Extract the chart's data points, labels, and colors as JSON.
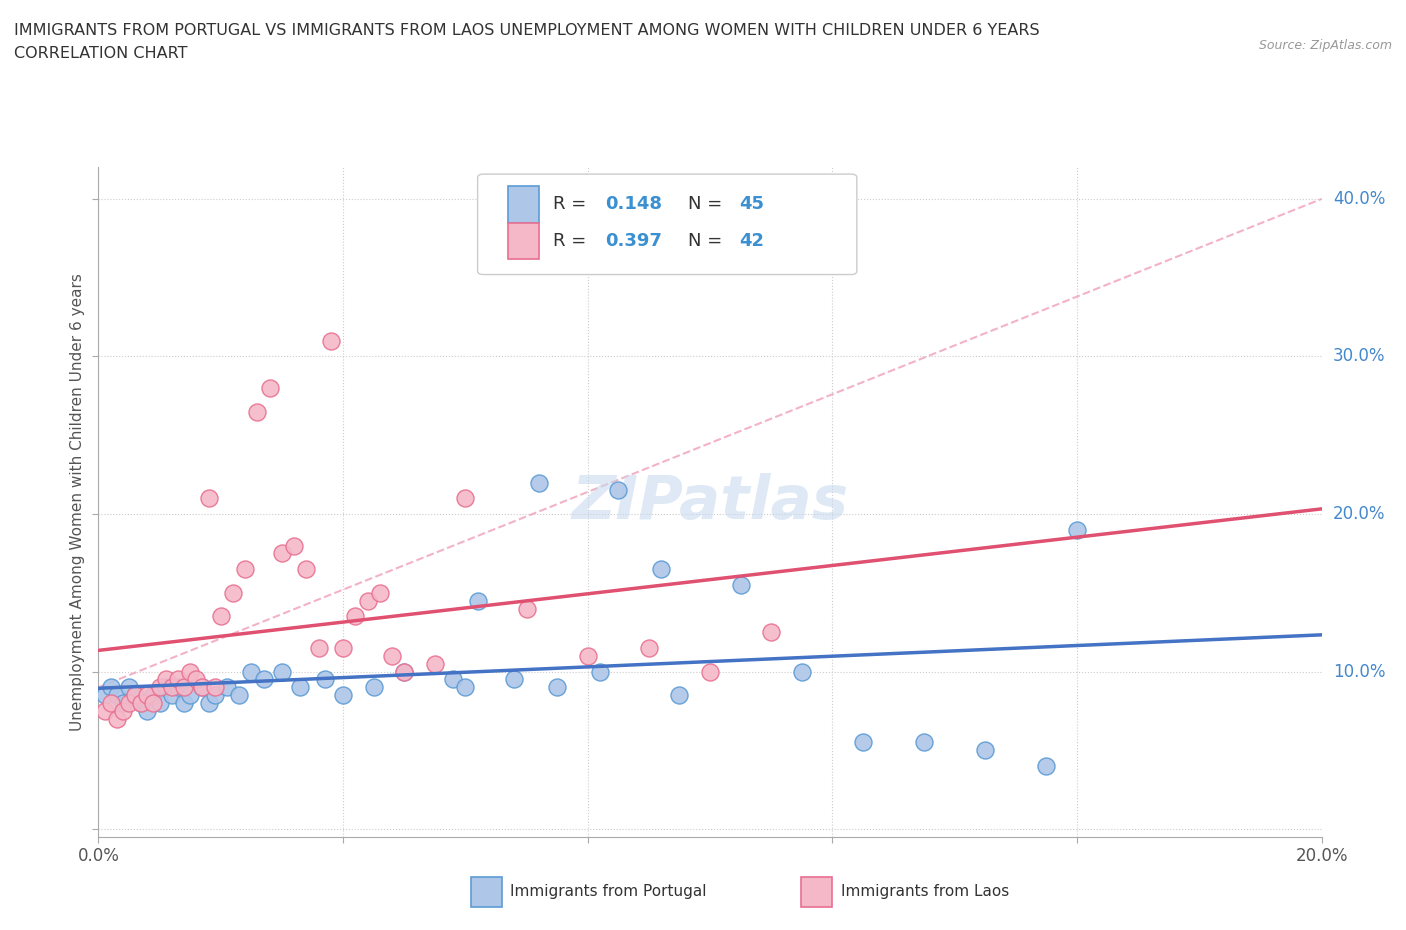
{
  "title_line1": "IMMIGRANTS FROM PORTUGAL VS IMMIGRANTS FROM LAOS UNEMPLOYMENT AMONG WOMEN WITH CHILDREN UNDER 6 YEARS",
  "title_line2": "CORRELATION CHART",
  "source": "Source: ZipAtlas.com",
  "ylabel": "Unemployment Among Women with Children Under 6 years",
  "xlim": [
    0.0,
    0.2
  ],
  "ylim": [
    -0.005,
    0.42
  ],
  "xticks": [
    0.0,
    0.04,
    0.08,
    0.12,
    0.16,
    0.2
  ],
  "yticks": [
    0.0,
    0.1,
    0.2,
    0.3,
    0.4
  ],
  "r_portugal": 0.148,
  "n_portugal": 45,
  "r_laos": 0.397,
  "n_laos": 42,
  "color_portugal_fill": "#aec6e8",
  "color_portugal_edge": "#5b9bd5",
  "color_laos_fill": "#f4b8c8",
  "color_laos_edge": "#e87090",
  "color_portugal_line": "#4472c4",
  "color_laos_line": "#e05070",
  "color_dashed": "#f0a0b8",
  "watermark": "ZIPatlas",
  "portugal_x": [
    0.001,
    0.002,
    0.003,
    0.004,
    0.005,
    0.006,
    0.007,
    0.008,
    0.009,
    0.01,
    0.011,
    0.012,
    0.013,
    0.014,
    0.015,
    0.017,
    0.018,
    0.019,
    0.021,
    0.023,
    0.025,
    0.027,
    0.03,
    0.033,
    0.037,
    0.04,
    0.045,
    0.05,
    0.058,
    0.062,
    0.068,
    0.075,
    0.085,
    0.095,
    0.105,
    0.115,
    0.125,
    0.135,
    0.145,
    0.155,
    0.06,
    0.072,
    0.082,
    0.092,
    0.16
  ],
  "portugal_y": [
    0.085,
    0.09,
    0.085,
    0.08,
    0.09,
    0.085,
    0.08,
    0.075,
    0.085,
    0.08,
    0.09,
    0.085,
    0.09,
    0.08,
    0.085,
    0.09,
    0.08,
    0.085,
    0.09,
    0.085,
    0.1,
    0.095,
    0.1,
    0.09,
    0.095,
    0.085,
    0.09,
    0.1,
    0.095,
    0.145,
    0.095,
    0.09,
    0.215,
    0.085,
    0.155,
    0.1,
    0.055,
    0.055,
    0.05,
    0.04,
    0.09,
    0.22,
    0.1,
    0.165,
    0.19
  ],
  "laos_x": [
    0.001,
    0.002,
    0.003,
    0.004,
    0.005,
    0.006,
    0.007,
    0.008,
    0.009,
    0.01,
    0.011,
    0.012,
    0.013,
    0.014,
    0.015,
    0.016,
    0.017,
    0.018,
    0.019,
    0.02,
    0.022,
    0.024,
    0.026,
    0.028,
    0.03,
    0.032,
    0.034,
    0.036,
    0.038,
    0.04,
    0.042,
    0.044,
    0.046,
    0.048,
    0.05,
    0.055,
    0.06,
    0.07,
    0.08,
    0.09,
    0.1,
    0.11
  ],
  "laos_y": [
    0.075,
    0.08,
    0.07,
    0.075,
    0.08,
    0.085,
    0.08,
    0.085,
    0.08,
    0.09,
    0.095,
    0.09,
    0.095,
    0.09,
    0.1,
    0.095,
    0.09,
    0.21,
    0.09,
    0.135,
    0.15,
    0.165,
    0.265,
    0.28,
    0.175,
    0.18,
    0.165,
    0.115,
    0.31,
    0.115,
    0.135,
    0.145,
    0.15,
    0.11,
    0.1,
    0.105,
    0.21,
    0.14,
    0.11,
    0.115,
    0.1,
    0.125
  ]
}
